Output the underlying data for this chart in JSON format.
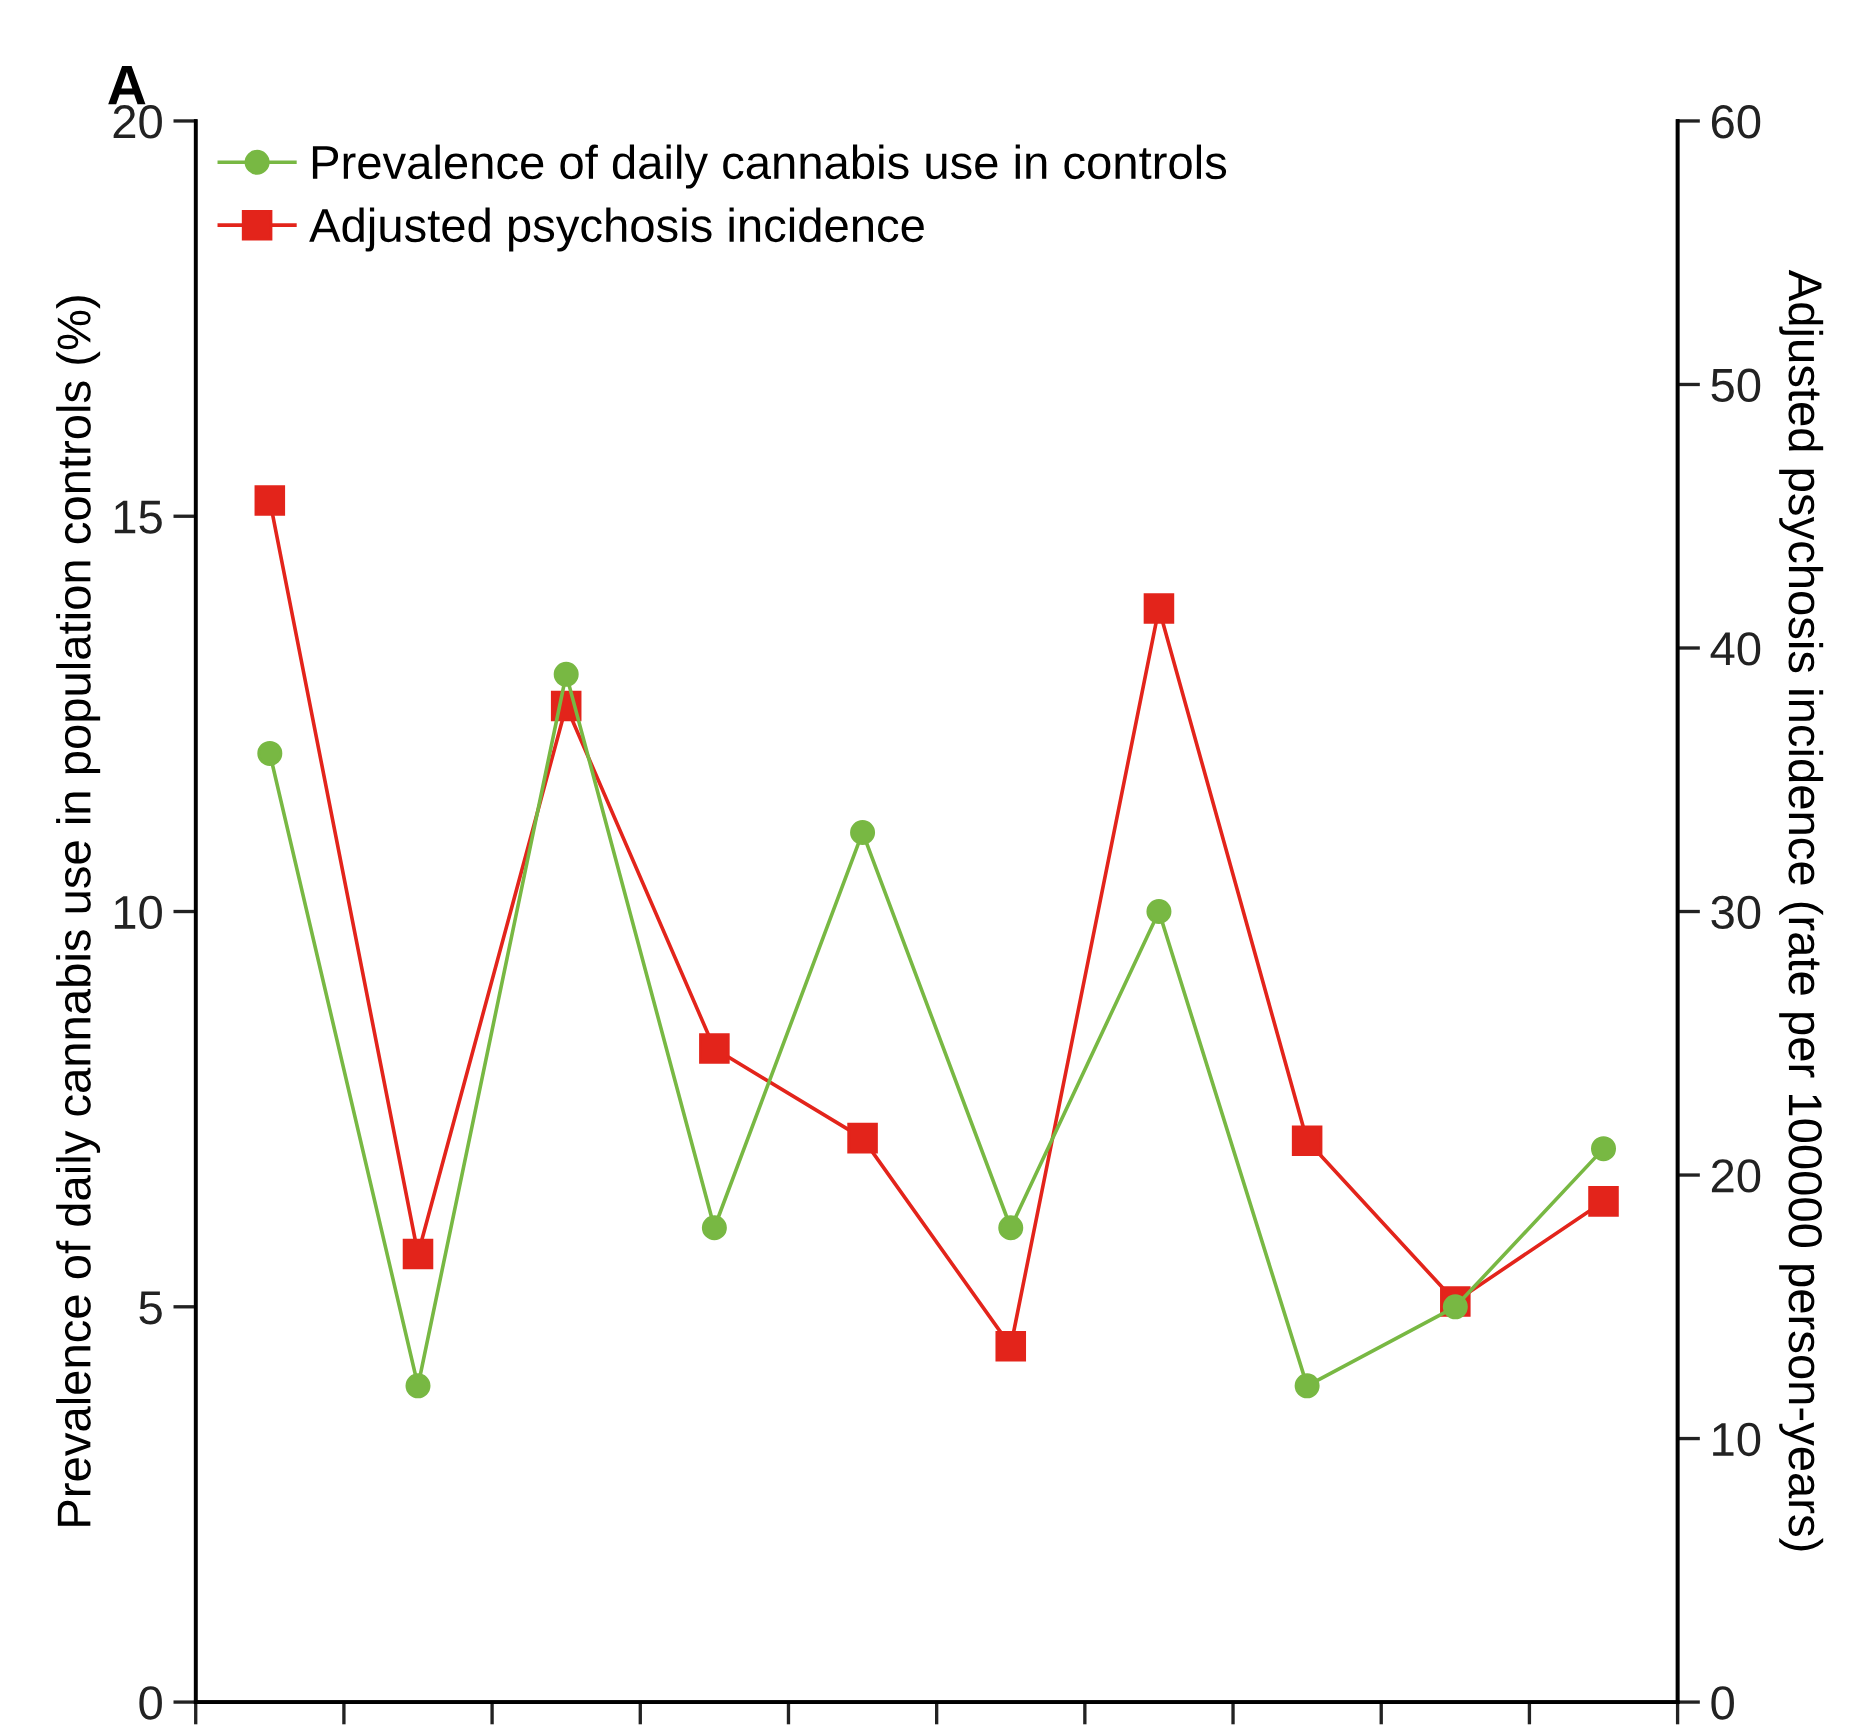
{
  "chart_data": {
    "type": "line",
    "title": "A",
    "categories": [
      null,
      null,
      null,
      null,
      null,
      null,
      null,
      null,
      null,
      null
    ],
    "ylabel": "Prevalence of daily cannabis use in population controls (%)",
    "y2label": "Adjusted psychosis incidence (rate per 100000 person-years)",
    "ylim": [
      0,
      20
    ],
    "yticks": [
      0,
      5,
      10,
      15,
      20
    ],
    "y2lim": [
      0,
      60
    ],
    "y2ticks": [
      0,
      10,
      20,
      30,
      40,
      50,
      60
    ],
    "legend": "top left",
    "grid": false,
    "series": [
      {
        "name": "Prevalence of daily cannabis use in controls",
        "color": "#78b843",
        "marker": "circle",
        "values": [
          12,
          4,
          13,
          6,
          11,
          6,
          10,
          4,
          5,
          7
        ]
      },
      {
        "name": "Adjusted psychosis incidence",
        "color": "#e3241b",
        "marker": "square",
        "axis": "y2",
        "values": [
          45.6,
          17,
          37.8,
          24.8,
          21.4,
          13.5,
          41.5,
          21.3,
          15.2,
          19
        ]
      }
    ]
  }
}
